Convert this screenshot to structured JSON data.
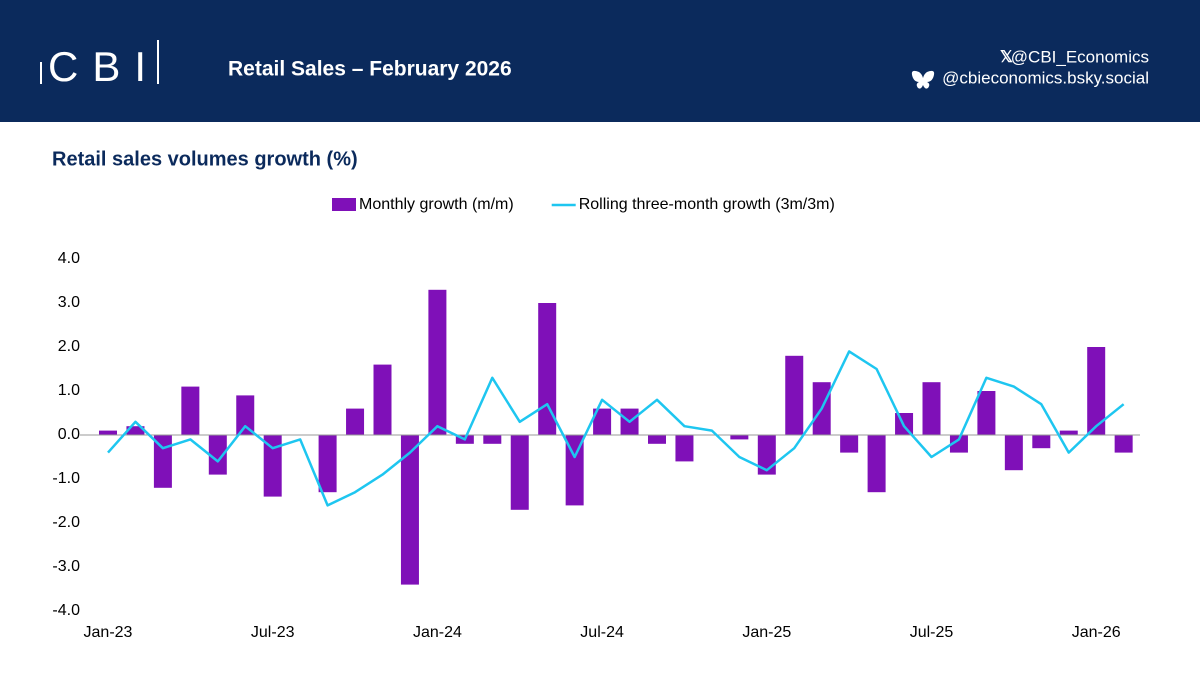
{
  "header": {
    "logo": "CBI",
    "title": "Retail Sales – February 2026",
    "x_handle": "@CBI_Economics",
    "bsky_handle": "@cbieconomics.bsky.social"
  },
  "chart_data": {
    "type": "bar_line",
    "title": "Retail sales volumes growth (%)",
    "categories": [
      "Jan-23",
      null,
      null,
      null,
      null,
      null,
      "Jul-23",
      null,
      null,
      null,
      null,
      null,
      "Jan-24",
      null,
      null,
      null,
      null,
      null,
      "Jul-24",
      null,
      null,
      null,
      null,
      null,
      "Jan-25",
      null,
      null,
      null,
      null,
      null,
      "Jul-25",
      null,
      null,
      null,
      null,
      null,
      "Jan-26",
      null
    ],
    "series": [
      {
        "name": "Monthly growth (m/m)",
        "kind": "bar",
        "color": "#7f10b8",
        "values": [
          0.1,
          0.2,
          -1.2,
          1.1,
          -0.9,
          0.9,
          -1.4,
          0,
          -1.3,
          0.6,
          1.6,
          -3.4,
          3.3,
          -0.2,
          -0.2,
          -1.7,
          3.0,
          -1.6,
          0.6,
          0.6,
          -0.2,
          -0.6,
          0,
          -0.1,
          -0.9,
          1.8,
          1.2,
          -0.4,
          -1.3,
          0.5,
          1.2,
          -0.4,
          1.0,
          -0.8,
          -0.3,
          0.1,
          2.0,
          -0.4
        ]
      },
      {
        "name": "Rolling three-month growth (3m/3m)",
        "kind": "line",
        "color": "#1ec6f0",
        "values": [
          -0.4,
          0.3,
          -0.3,
          -0.1,
          -0.6,
          0.2,
          -0.3,
          -0.1,
          -1.6,
          -1.3,
          -0.9,
          -0.4,
          0.2,
          -0.1,
          1.3,
          0.3,
          0.7,
          -0.5,
          0.8,
          0.3,
          0.8,
          0.2,
          0.1,
          -0.5,
          -0.8,
          -0.3,
          0.6,
          1.9,
          1.5,
          0.2,
          -0.5,
          -0.1,
          1.3,
          1.1,
          0.7,
          -0.4,
          0.2,
          0.7
        ]
      }
    ],
    "ylim": [
      -4,
      4
    ],
    "yticks": [
      {
        "value": -4,
        "label": "-4.0"
      },
      {
        "value": -3,
        "label": "-3.0"
      },
      {
        "value": -2,
        "label": "-2.0"
      },
      {
        "value": -1,
        "label": "-1.0"
      },
      {
        "value": 0,
        "label": "0.0"
      },
      {
        "value": 1,
        "label": "1.0"
      },
      {
        "value": 2,
        "label": "2.0"
      },
      {
        "value": 3,
        "label": "3.0"
      },
      {
        "value": 4,
        "label": "4.0"
      }
    ],
    "legend": "top",
    "grid": false
  }
}
